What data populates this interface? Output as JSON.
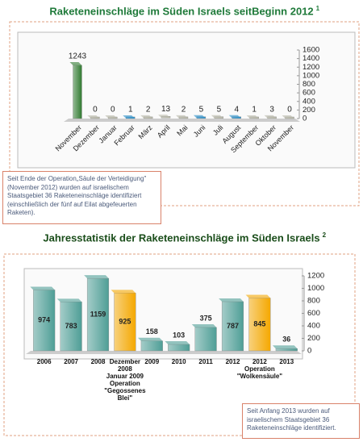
{
  "chart_data": [
    {
      "type": "bar",
      "title": "Raketeneinschläge im Süden Israels seitBeginn 2012",
      "title_mark": "1",
      "categories": [
        "November",
        "Dezember",
        "Januar",
        "Februar",
        "März",
        "April",
        "Mai",
        "Juni",
        "Juli",
        "August",
        "September",
        "Oktober",
        "November"
      ],
      "values": [
        1243,
        0,
        0,
        1,
        2,
        13,
        2,
        5,
        5,
        4,
        1,
        3,
        0
      ],
      "colors": [
        "#2f7a2f",
        "#b8b8a8",
        "#b8b8a8",
        "#2a8fc9",
        "#b8b8a8",
        "#b8b8a8",
        "#b8b8a8",
        "#2a8fc9",
        "#b8b8a8",
        "#2a8fc9",
        "#b8b8a8",
        "#b8b8a8",
        "#b8b8a8"
      ],
      "ylim": [
        0,
        1600
      ],
      "yticks": [
        0,
        200,
        400,
        600,
        800,
        1000,
        1200,
        1400,
        1600
      ],
      "note": [
        "Seit Ende der Operation„Säule der Verteidigung\"",
        "(November 2012) wurden auf israelischem",
        "Staatsgebiet 36 Raketeneinschläge identifiziert",
        "(einschließlich der fünf auf Eilat abgefeuerten",
        "Raketen)."
      ]
    },
    {
      "type": "bar",
      "title": "Jahresstatistik der Raketeneinschläge im Süden Israels",
      "title_mark": "2",
      "categories": [
        "2006",
        "2007",
        "2008",
        "Dezember\n2008\nJanuar 2009\nOperation\n\"Gegossenes\nBlei\"",
        "2009",
        "2010",
        "2011",
        "2012",
        "2012\nOperation\n\"Wolkensäule\"",
        "2013"
      ],
      "values": [
        974,
        783,
        1159,
        925,
        158,
        103,
        375,
        787,
        845,
        36
      ],
      "colors": [
        "#4e9e96",
        "#4e9e96",
        "#4e9e96",
        "#f5a800",
        "#4e9e96",
        "#4e9e96",
        "#4e9e96",
        "#4e9e96",
        "#f5a800",
        "#4e9e96"
      ],
      "ylim": [
        0,
        1200
      ],
      "yticks": [
        0,
        200,
        400,
        600,
        800,
        1000,
        1200
      ],
      "note": [
        "Seit Anfang 2013 wurden auf",
        "israelischem Staatsgebiet 36",
        "Raketeneinschläge identifiziert."
      ]
    }
  ]
}
